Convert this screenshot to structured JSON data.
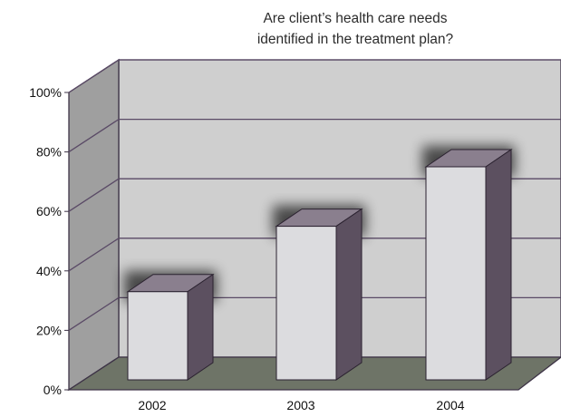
{
  "chart_data": {
    "type": "bar",
    "title_lines": [
      "Are client’s health care needs",
      "identified in the treatment plan?"
    ],
    "categories": [
      "2002",
      "2003",
      "2004"
    ],
    "values": [
      33,
      55,
      75
    ],
    "xlabel": "",
    "ylabel": "",
    "ylim": [
      0,
      100
    ],
    "yticks": [
      0,
      20,
      40,
      60,
      80,
      100
    ],
    "ytick_labels": [
      "0%",
      "20%",
      "40%",
      "60%",
      "80%",
      "100%"
    ],
    "grid": true,
    "legend": "none",
    "three_d": true,
    "colors": {
      "back_wall": "#cfcfcf",
      "side_wall": "#9f9f9f",
      "floor": "#6e7467",
      "bar_front": "#dcdcdf",
      "bar_side": "#5c5060",
      "bar_top": "#8a7f8e",
      "gridline": "#5a4a66"
    }
  }
}
